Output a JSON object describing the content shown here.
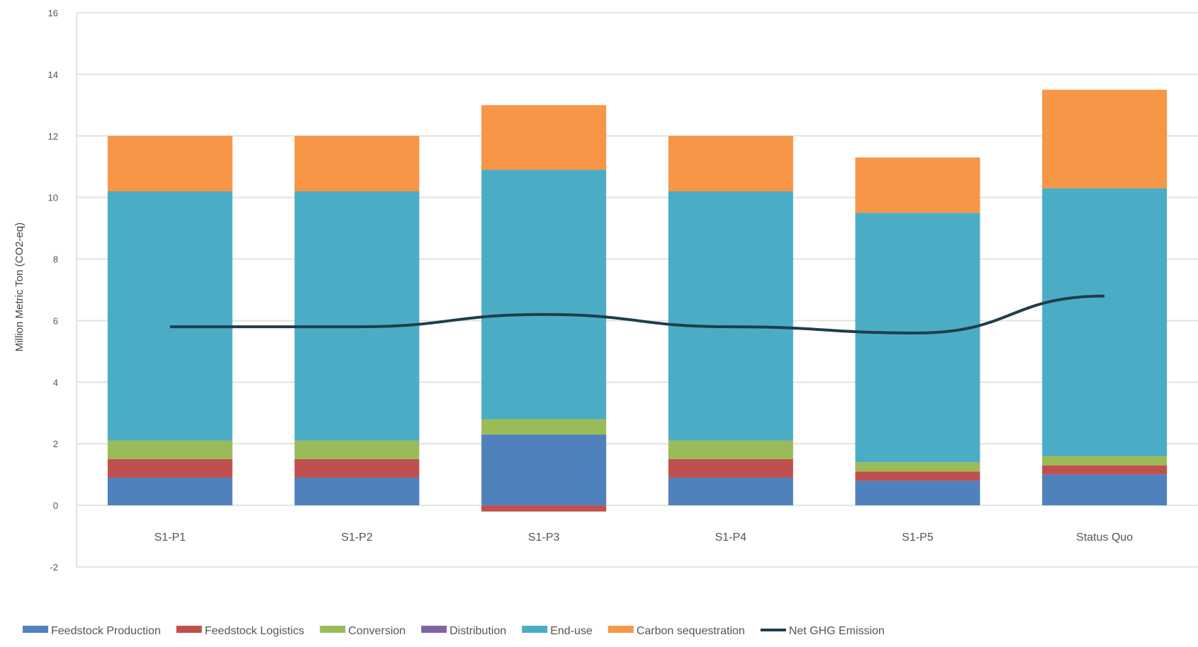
{
  "chart_data": {
    "type": "bar",
    "stacked": true,
    "title": "",
    "xlabel": "",
    "ylabel": "Million Metric Ton (CO2-eq)",
    "ylim": [
      -2,
      16
    ],
    "y_ticks": [
      -2,
      0,
      2,
      4,
      6,
      8,
      10,
      12,
      14,
      16
    ],
    "grid": true,
    "legend_position": "bottom",
    "categories": [
      "S1-P1",
      "S1-P2",
      "S1-P3",
      "S1-P4",
      "S1-P5",
      "Status Quo"
    ],
    "series": [
      {
        "name": "Feedstock Production",
        "kind": "bar",
        "color": "#4f81bd",
        "values": [
          0.9,
          0.9,
          2.3,
          0.9,
          0.8,
          1.0
        ]
      },
      {
        "name": "Feedstock Logistics",
        "kind": "bar",
        "color": "#c0504d",
        "values": [
          0.6,
          0.6,
          -0.2,
          0.6,
          0.3,
          0.3
        ]
      },
      {
        "name": "Conversion",
        "kind": "bar",
        "color": "#9bbb59",
        "values": [
          0.6,
          0.6,
          0.5,
          0.6,
          0.3,
          0.3
        ]
      },
      {
        "name": "Distribution",
        "kind": "bar",
        "color": "#8064a2",
        "values": [
          0.0,
          0.0,
          0.0,
          0.0,
          0.0,
          0.0
        ]
      },
      {
        "name": "End-use",
        "kind": "bar",
        "color": "#4bacc6",
        "values": [
          8.1,
          8.1,
          8.1,
          8.1,
          8.1,
          8.7
        ]
      },
      {
        "name": "Carbon sequestration",
        "kind": "bar",
        "color": "#f79646",
        "values": [
          1.8,
          1.8,
          2.1,
          1.8,
          1.8,
          3.2
        ]
      },
      {
        "name": "Net GHG Emission",
        "kind": "line",
        "color": "#1f3d4d",
        "values": [
          5.8,
          5.8,
          6.2,
          5.8,
          5.6,
          6.8
        ]
      }
    ]
  }
}
